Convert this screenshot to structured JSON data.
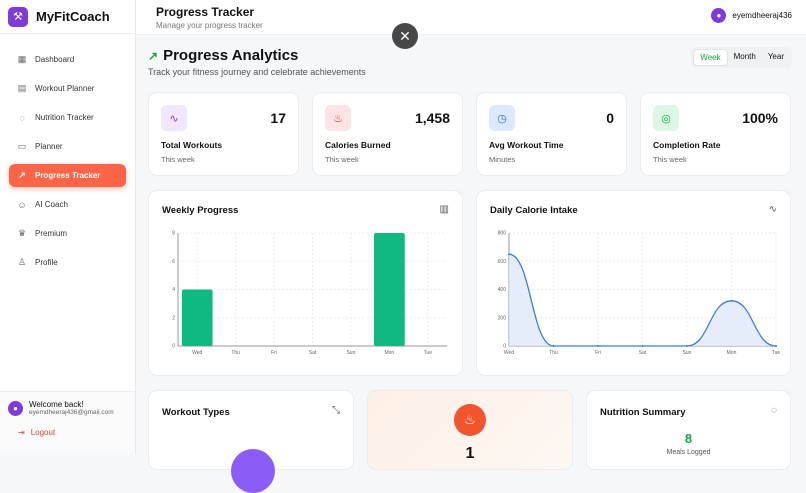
{
  "app": {
    "name": "MyFitCoach"
  },
  "sidebar": {
    "items": [
      {
        "label": "Dashboard",
        "icon": "grid-icon"
      },
      {
        "label": "Workout Planner",
        "icon": "clipboard-icon"
      },
      {
        "label": "Nutrition Tracker",
        "icon": "apple-icon"
      },
      {
        "label": "Planner",
        "icon": "calendar-icon"
      },
      {
        "label": "Progress Tracker",
        "icon": "trending-up-icon",
        "active": true
      },
      {
        "label": "AI Coach",
        "icon": "bot-icon"
      },
      {
        "label": "Premium",
        "icon": "crown-icon"
      },
      {
        "label": "Profile",
        "icon": "user-icon"
      }
    ],
    "welcome": "Welcome back!",
    "email": "eyemdheeraj436@gmail.com",
    "logout": "Logout"
  },
  "header": {
    "title": "Progress Tracker",
    "subtitle": "Manage your progress tracker",
    "user": "eyemdheeraj436"
  },
  "main": {
    "title": "Progress Analytics",
    "subtitle": "Track your fitness journey and celebrate achievements",
    "ranges": [
      "Week",
      "Month",
      "Year"
    ],
    "active_range": "Week",
    "stats": [
      {
        "value": "17",
        "label": "Total Workouts",
        "sub": "This week",
        "color": "#7e3bd6",
        "bg": "#f1e6fd"
      },
      {
        "value": "1,458",
        "label": "Calories Burned",
        "sub": "This week",
        "color": "#dc2626",
        "bg": "#fde4e4"
      },
      {
        "value": "0",
        "label": "Avg Workout Time",
        "sub": "Minutes",
        "color": "#2563eb",
        "bg": "#dce9fd"
      },
      {
        "value": "100%",
        "label": "Completion Rate",
        "sub": "This week",
        "color": "#16a34a",
        "bg": "#dcf7e4"
      }
    ],
    "weekly_title": "Weekly Progress",
    "calorie_title": "Daily Calorie Intake",
    "workout_types_title": "Workout Types",
    "streak_value": "1",
    "nutrition_title": "Nutrition Summary",
    "meals_value": "8",
    "meals_label": "Meals Logged"
  },
  "chart_data": [
    {
      "type": "bar",
      "categories": [
        "Wed",
        "Thu",
        "Fri",
        "Sat",
        "Sun",
        "Mon",
        "Tue"
      ],
      "values": [
        4,
        0,
        0,
        0,
        0,
        8,
        0
      ],
      "ylim": [
        0,
        8
      ],
      "yticks": [
        "0",
        "2",
        "4",
        "6",
        "8"
      ],
      "grid": true,
      "color": "#10b981"
    },
    {
      "type": "area",
      "categories": [
        "Wed",
        "Thu",
        "Fri",
        "Sat",
        "Sun",
        "Mon",
        "Tue"
      ],
      "values": [
        650,
        0,
        0,
        0,
        0,
        320,
        0
      ],
      "ylim": [
        0,
        800
      ],
      "yticks": [
        "0",
        "200",
        "400",
        "600",
        "800"
      ],
      "grid": true,
      "color": "#3b7dd8"
    }
  ]
}
